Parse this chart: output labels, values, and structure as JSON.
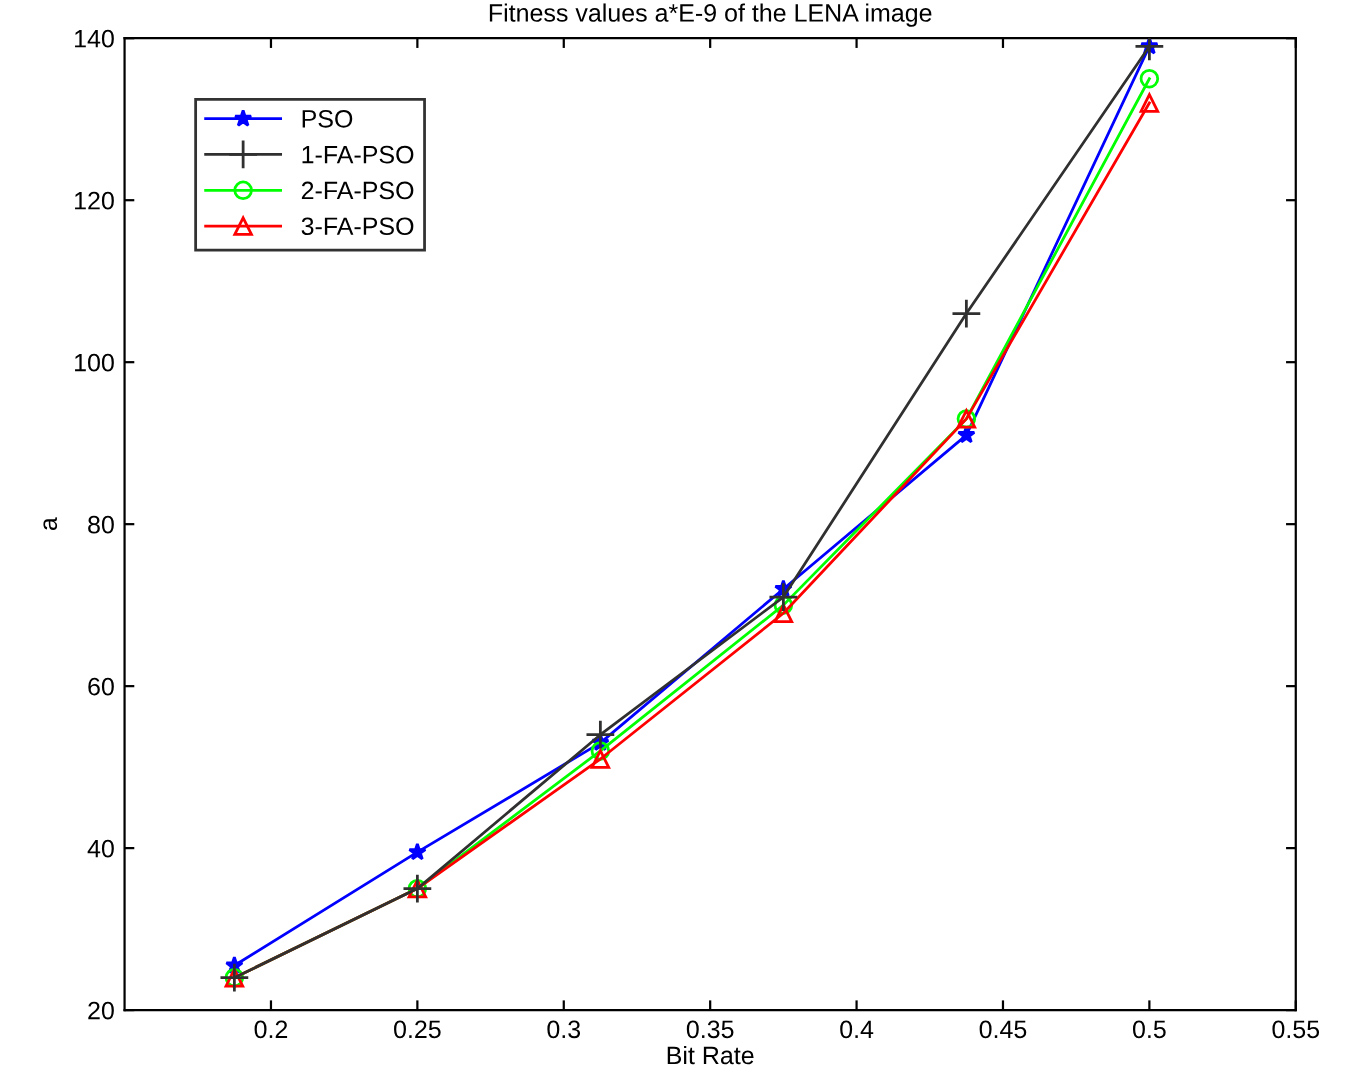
{
  "chart_data": {
    "type": "line",
    "title": "Fitness values a*E-9 of the LENA image",
    "xlabel": "Bit Rate",
    "ylabel": "a",
    "x": [
      0.1875,
      0.25,
      0.3125,
      0.375,
      0.4375,
      0.5
    ],
    "series": [
      {
        "name": "PSO",
        "color": "#0000ff",
        "marker": "star",
        "values": [
          25.5,
          39.5,
          53,
          72,
          91,
          139
        ]
      },
      {
        "name": "1-FA-PSO",
        "color": "#303030",
        "marker": "cross",
        "values": [
          24,
          35,
          54,
          71,
          106,
          139
        ]
      },
      {
        "name": "2-FA-PSO",
        "color": "#00ff00",
        "marker": "circle",
        "values": [
          24,
          35,
          52,
          70,
          93,
          135
        ]
      },
      {
        "name": "3-FA-PSO",
        "color": "#ff0000",
        "marker": "triangle",
        "values": [
          24,
          35,
          51,
          69,
          93,
          132
        ]
      }
    ],
    "xlim": [
      0.15,
      0.55
    ],
    "xticks": [
      0.2,
      0.25,
      0.3,
      0.35,
      0.4,
      0.45,
      0.5,
      0.55
    ],
    "ylim": [
      20,
      140
    ],
    "yticks": [
      20,
      40,
      60,
      80,
      100,
      120,
      140
    ],
    "grid": false,
    "legend": "top left"
  }
}
